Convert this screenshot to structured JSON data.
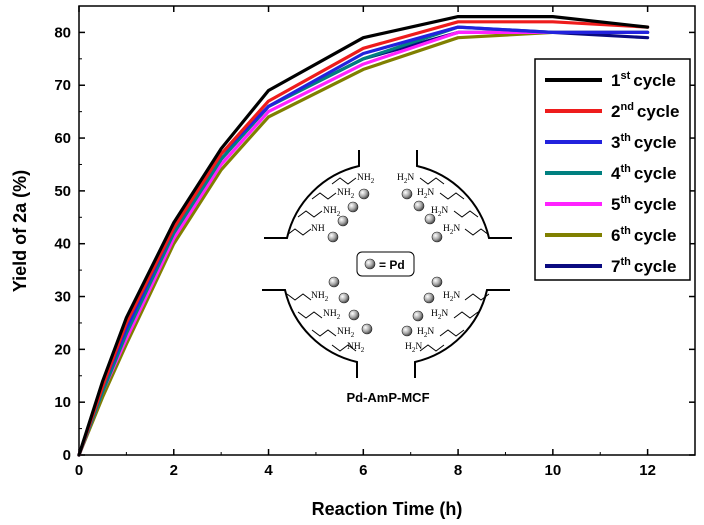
{
  "chart_data": {
    "type": "line",
    "xlabel": "Reaction Time (h)",
    "ylabel": "Yield of 2a (%)",
    "xlim": [
      0,
      13
    ],
    "ylim": [
      0,
      85
    ],
    "xticks": [
      0,
      2,
      4,
      6,
      8,
      10,
      12
    ],
    "yticks": [
      0,
      10,
      20,
      30,
      40,
      50,
      60,
      70,
      80
    ],
    "legend_position": "right",
    "x": [
      0,
      0.5,
      1,
      2,
      3,
      4,
      6,
      8,
      10,
      12
    ],
    "series": [
      {
        "name": "1st cycle",
        "ordinal": "1",
        "suffix": "st",
        "label": "cycle",
        "color": "#000000",
        "values": [
          0,
          14,
          26,
          44,
          58,
          69,
          79,
          83,
          83,
          81
        ]
      },
      {
        "name": "2nd cycle",
        "ordinal": "2",
        "suffix": "nd",
        "label": "cycle",
        "color": "#ee1c1c",
        "values": [
          0,
          13,
          25,
          43,
          57,
          67,
          77,
          82,
          82,
          81
        ]
      },
      {
        "name": "3th cycle",
        "ordinal": "3",
        "suffix": "th",
        "label": "cycle",
        "color": "#2222dd",
        "values": [
          0,
          13,
          24,
          43,
          57,
          66,
          76,
          81,
          80,
          80
        ]
      },
      {
        "name": "4th cycle",
        "ordinal": "4",
        "suffix": "th",
        "label": "cycle",
        "color": "#008080",
        "values": [
          0,
          12,
          23,
          42,
          56,
          66,
          75,
          81,
          80,
          80
        ]
      },
      {
        "name": "5th cycle",
        "ordinal": "5",
        "suffix": "th",
        "label": "cycle",
        "color": "#ff22ff",
        "values": [
          0,
          12,
          22,
          41,
          55,
          65,
          74,
          80,
          80,
          80
        ]
      },
      {
        "name": "6th cycle",
        "ordinal": "6",
        "suffix": "th",
        "label": "cycle",
        "color": "#808000",
        "values": [
          0,
          11,
          21,
          40,
          54,
          64,
          73,
          79,
          80,
          80
        ]
      },
      {
        "name": "7th cycle",
        "ordinal": "7",
        "suffix": "th",
        "label": "cycle",
        "color": "#0a0a80",
        "values": [
          0,
          12,
          22,
          42,
          56,
          66,
          75,
          80,
          80,
          79
        ]
      }
    ],
    "inset": {
      "caption": "Pd-AmP-MCF",
      "key": "= Pd",
      "amine_nh": "NH",
      "amine_nh2": "NH",
      "amine_h2n": "H",
      "amine_n": "N",
      "subscript": "2"
    }
  }
}
